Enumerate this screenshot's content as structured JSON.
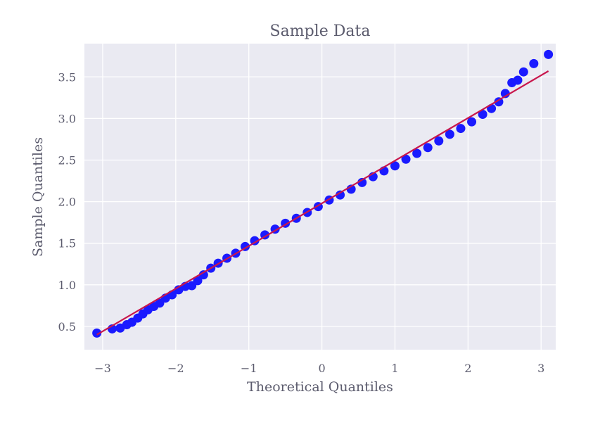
{
  "chart_data": {
    "type": "scatter",
    "title": "Sample Data",
    "xlabel": "Theoretical Quantiles",
    "ylabel": "Sample Quantiles",
    "xlim": [
      -3.25,
      3.2
    ],
    "ylim": [
      0.22,
      3.9
    ],
    "xticks": [
      -3,
      -2,
      -1,
      0,
      1,
      2,
      3
    ],
    "xtick_labels": [
      "−3",
      "−2",
      "−1",
      "0",
      "1",
      "2",
      "3"
    ],
    "yticks": [
      0.5,
      1.0,
      1.5,
      2.0,
      2.5,
      3.0,
      3.5
    ],
    "ytick_labels": [
      "0.5",
      "1.0",
      "1.5",
      "2.0",
      "2.5",
      "3.0",
      "3.5"
    ],
    "grid": true,
    "series": [
      {
        "type": "scatter",
        "color": "#1a1aff",
        "points": [
          [
            -3.08,
            0.42
          ],
          [
            -2.87,
            0.47
          ],
          [
            -2.76,
            0.48
          ],
          [
            -2.67,
            0.52
          ],
          [
            -2.6,
            0.55
          ],
          [
            -2.52,
            0.6
          ],
          [
            -2.45,
            0.65
          ],
          [
            -2.38,
            0.7
          ],
          [
            -2.3,
            0.74
          ],
          [
            -2.22,
            0.78
          ],
          [
            -2.14,
            0.84
          ],
          [
            -2.05,
            0.88
          ],
          [
            -1.96,
            0.94
          ],
          [
            -1.87,
            0.98
          ],
          [
            -1.78,
            0.99
          ],
          [
            -1.7,
            1.05
          ],
          [
            -1.62,
            1.12
          ],
          [
            -1.52,
            1.2
          ],
          [
            -1.42,
            1.26
          ],
          [
            -1.3,
            1.32
          ],
          [
            -1.18,
            1.38
          ],
          [
            -1.05,
            1.46
          ],
          [
            -0.92,
            1.53
          ],
          [
            -0.78,
            1.6
          ],
          [
            -0.64,
            1.67
          ],
          [
            -0.5,
            1.74
          ],
          [
            -0.35,
            1.8
          ],
          [
            -0.2,
            1.87
          ],
          [
            -0.05,
            1.94
          ],
          [
            0.1,
            2.02
          ],
          [
            0.25,
            2.08
          ],
          [
            0.4,
            2.15
          ],
          [
            0.55,
            2.23
          ],
          [
            0.7,
            2.3
          ],
          [
            0.85,
            2.37
          ],
          [
            1.0,
            2.43
          ],
          [
            1.15,
            2.51
          ],
          [
            1.3,
            2.58
          ],
          [
            1.45,
            2.65
          ],
          [
            1.6,
            2.73
          ],
          [
            1.75,
            2.81
          ],
          [
            1.9,
            2.88
          ],
          [
            2.05,
            2.96
          ],
          [
            2.2,
            3.05
          ],
          [
            2.32,
            3.12
          ],
          [
            2.42,
            3.2
          ],
          [
            2.51,
            3.3
          ],
          [
            2.6,
            3.43
          ],
          [
            2.68,
            3.46
          ],
          [
            2.76,
            3.56
          ],
          [
            2.9,
            3.66
          ],
          [
            3.1,
            3.77
          ]
        ]
      },
      {
        "type": "line",
        "color": "#c8174d",
        "points": [
          [
            -3.08,
            0.4
          ],
          [
            3.1,
            3.57
          ]
        ]
      }
    ]
  }
}
